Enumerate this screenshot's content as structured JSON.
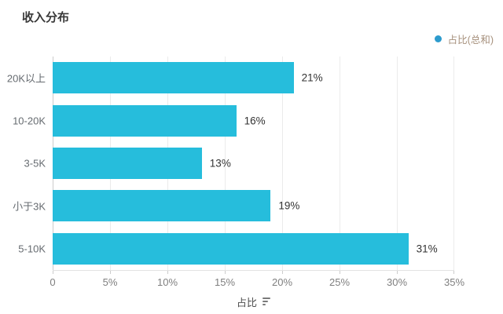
{
  "chart_data": {
    "type": "bar",
    "orientation": "horizontal",
    "title": "收入分布",
    "series_name": "占比(总和)",
    "categories": [
      "20K以上",
      "10-20K",
      "3-5K",
      "小于3K",
      "5-10K"
    ],
    "values": [
      21,
      16,
      13,
      19,
      31
    ],
    "value_labels": [
      "21%",
      "16%",
      "13%",
      "19%",
      "31%"
    ],
    "xlabel": "占比",
    "x_ticks": [
      "0",
      "5%",
      "10%",
      "15%",
      "20%",
      "25%",
      "30%",
      "35%"
    ],
    "xlim": [
      0,
      35
    ],
    "grid": true,
    "legend_position": "top-right",
    "colors": {
      "bar": "#26BDDC",
      "legend_marker": "#2D9BCD",
      "legend_text": "#A6907C",
      "title_text": "#383838",
      "category_text": "#666B70",
      "value_text": "#333333",
      "tick_text": "#7F7F7F",
      "axis_line": "#CCCCCC",
      "gridline": "#EBEBEB",
      "baseline": "#E3E3E3",
      "x_title_text": "#4D4D4D"
    }
  }
}
